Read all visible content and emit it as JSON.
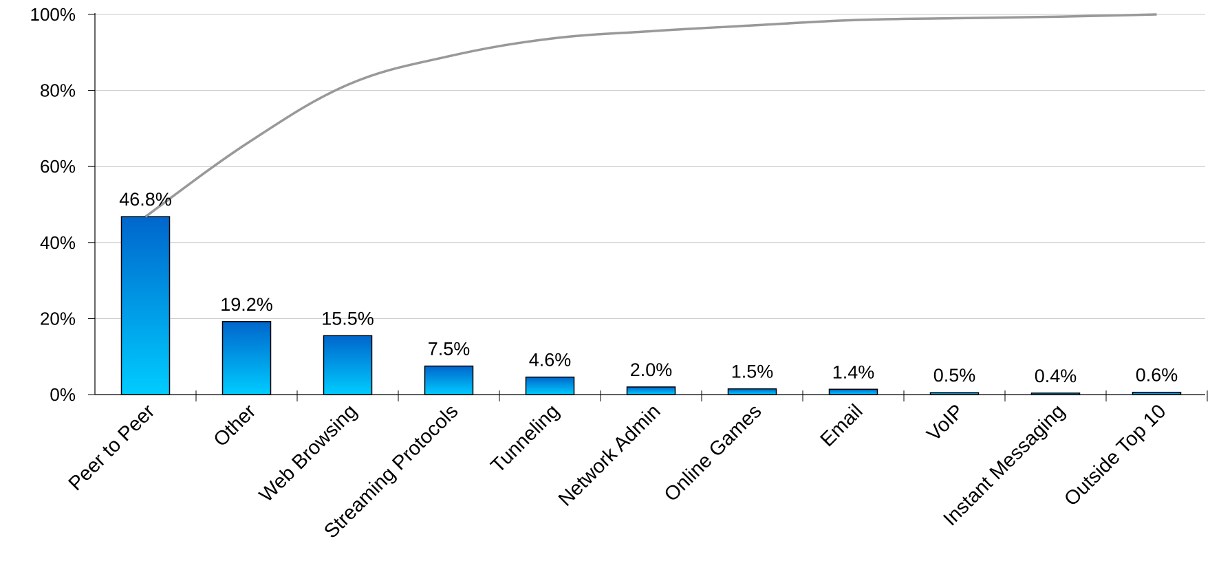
{
  "chart_data": {
    "type": "bar",
    "title": "",
    "xlabel": "",
    "ylabel": "",
    "categories": [
      "Peer to Peer",
      "Other",
      "Web Browsing",
      "Streaming Protocols",
      "Tunneling",
      "Network Admin",
      "Online Games",
      "Email",
      "VoIP",
      "Instant Messaging",
      "Outside Top 10"
    ],
    "values": [
      46.8,
      19.2,
      15.5,
      7.5,
      4.6,
      2.0,
      1.5,
      1.4,
      0.5,
      0.4,
      0.6
    ],
    "data_labels": [
      "46.8%",
      "19.2%",
      "15.5%",
      "7.5%",
      "4.6%",
      "2.0%",
      "1.5%",
      "1.4%",
      "0.5%",
      "0.4%",
      "0.6%"
    ],
    "cumulative": [
      46.8,
      66.0,
      81.5,
      89.0,
      93.6,
      95.6,
      97.1,
      98.5,
      99.0,
      99.4,
      100.0
    ],
    "y_ticks": [
      "0%",
      "20%",
      "40%",
      "60%",
      "80%",
      "100%"
    ],
    "ylim": [
      0,
      100
    ],
    "grid": true,
    "legend": "none",
    "bar_color_top": "#0066cc",
    "bar_color_bottom": "#00ccff",
    "line_color": "#999999",
    "grid_color": "#c8c8c8"
  }
}
